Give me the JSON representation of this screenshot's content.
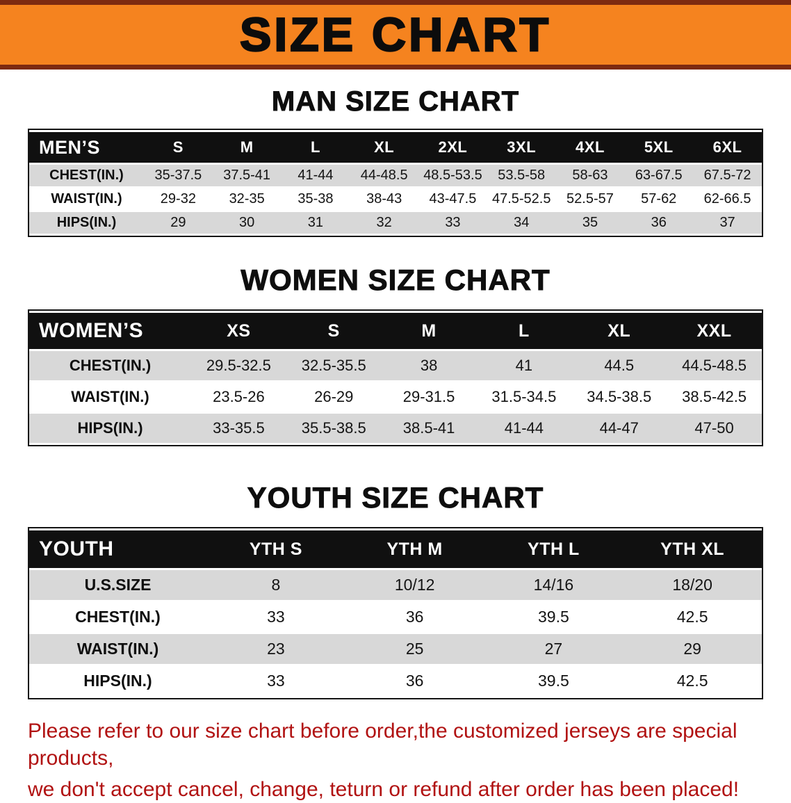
{
  "banner": {
    "title": "SIZE CHART"
  },
  "colors": {
    "banner_bg": "#f5831f",
    "banner_stripe": "#7d2a10",
    "header_row_bg": "#101010",
    "shaded_row_bg": "#d8d8d8",
    "disclaimer_text": "#b11212"
  },
  "sections": [
    {
      "heading": "MAN SIZE CHART",
      "table": {
        "header": [
          "MEN’S",
          "S",
          "M",
          "L",
          "XL",
          "2XL",
          "3XL",
          "4XL",
          "5XL",
          "6XL"
        ],
        "rows": [
          {
            "label": "CHEST(IN.)",
            "values": [
              "35-37.5",
              "37.5-41",
              "41-44",
              "44-48.5",
              "48.5-53.5",
              "53.5-58",
              "58-63",
              "63-67.5",
              "67.5-72"
            ]
          },
          {
            "label": "WAIST(IN.)",
            "values": [
              "29-32",
              "32-35",
              "35-38",
              "38-43",
              "43-47.5",
              "47.5-52.5",
              "52.5-57",
              "57-62",
              "62-66.5"
            ]
          },
          {
            "label": "HIPS(IN.)",
            "values": [
              "29",
              "30",
              "31",
              "32",
              "33",
              "34",
              "35",
              "36",
              "37"
            ]
          }
        ]
      }
    },
    {
      "heading": "WOMEN SIZE CHART",
      "table": {
        "header": [
          "WOMEN’S",
          "XS",
          "S",
          "M",
          "L",
          "XL",
          "XXL"
        ],
        "rows": [
          {
            "label": "CHEST(IN.)",
            "values": [
              "29.5-32.5",
              "32.5-35.5",
              "38",
              "41",
              "44.5",
              "44.5-48.5"
            ]
          },
          {
            "label": "WAIST(IN.)",
            "values": [
              "23.5-26",
              "26-29",
              "29-31.5",
              "31.5-34.5",
              "34.5-38.5",
              "38.5-42.5"
            ]
          },
          {
            "label": "HIPS(IN.)",
            "values": [
              "33-35.5",
              "35.5-38.5",
              "38.5-41",
              "41-44",
              "44-47",
              "47-50"
            ]
          }
        ]
      }
    },
    {
      "heading": "YOUTH SIZE CHART",
      "table": {
        "header": [
          "YOUTH",
          "YTH S",
          "YTH M",
          "YTH L",
          "YTH XL"
        ],
        "rows": [
          {
            "label": "U.S.SIZE",
            "values": [
              "8",
              "10/12",
              "14/16",
              "18/20"
            ]
          },
          {
            "label": "CHEST(IN.)",
            "values": [
              "33",
              "36",
              "39.5",
              "42.5"
            ]
          },
          {
            "label": "WAIST(IN.)",
            "values": [
              "23",
              "25",
              "27",
              "29"
            ]
          },
          {
            "label": "HIPS(IN.)",
            "values": [
              "33",
              "36",
              "39.5",
              "42.5"
            ]
          }
        ]
      }
    }
  ],
  "disclaimer": {
    "line1": "Please refer to our size chart before order,the customized jerseys are special products,",
    "line2": "we don't accept cancel, change, teturn or refund after order has been placed!"
  }
}
